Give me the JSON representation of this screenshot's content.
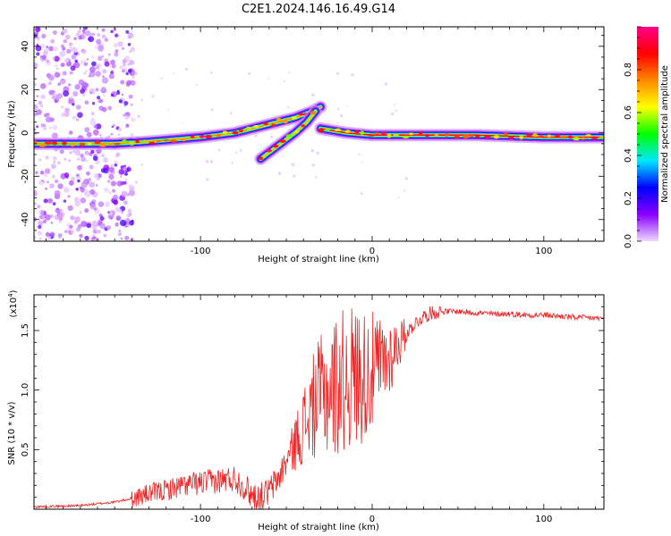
{
  "title": "C2E1.2024.146.16.49.G14",
  "chart_data": [
    {
      "type": "heatmap",
      "xlabel": "Height of straight line (km)",
      "ylabel": "Frequency (Hz)",
      "xlim": [
        -197,
        135
      ],
      "ylim": [
        -50,
        49
      ],
      "xticks": [
        -100,
        0,
        100
      ],
      "yticks": [
        -40,
        -20,
        0,
        20,
        40
      ],
      "ytick_labels": [
        "-40",
        "-20",
        "0",
        "20",
        "40"
      ],
      "colorbar": {
        "label": "Normalized spectral amplitude",
        "range": [
          0,
          1
        ],
        "ticks": [
          0.0,
          0.2,
          0.4,
          0.6,
          0.8
        ],
        "tick_labels": [
          "0.0",
          "0.2",
          "0.4",
          "0.6",
          "0.8"
        ],
        "colors": [
          "#f0d8ff",
          "#8800ff",
          "#0000ff",
          "#00e8ff",
          "#00ff00",
          "#ffff00",
          "#ff8800",
          "#ff0000",
          "#ff0088"
        ]
      },
      "ridges": [
        {
          "x": [
            -197,
            -150,
            -130,
            -100,
            -80,
            -60,
            -45,
            -35,
            -30
          ],
          "y": [
            -5,
            -5,
            -4,
            -2,
            0,
            4,
            7,
            10,
            12
          ],
          "amplitude": 0.75
        },
        {
          "x": [
            -65,
            -55,
            -45,
            -38,
            -33
          ],
          "y": [
            -12,
            -6,
            0,
            5,
            10
          ],
          "amplitude": 0.7
        },
        {
          "x": [
            -30,
            -15,
            0,
            20,
            60,
            100,
            135
          ],
          "y": [
            2,
            0,
            -1,
            -1,
            -1,
            -2,
            -2
          ],
          "amplitude": 0.9
        }
      ]
    },
    {
      "type": "line",
      "xlabel": "Height of straight line (km)",
      "ylabel": "SNR (10 * v/v)",
      "multiplier": "(x10",
      "multiplier_exp": "4",
      "multiplier_close": ")",
      "xlim": [
        -197,
        135
      ],
      "ylim": [
        0,
        1.8
      ],
      "xticks": [
        -100,
        0,
        100
      ],
      "yticks": [
        0.5,
        1.0,
        1.5
      ],
      "ytick_labels": [
        "0.5",
        "1.0",
        "1.5"
      ],
      "color": "#ee2222",
      "series": [
        {
          "x": [
            -197,
            -170,
            -150,
            -140,
            -130,
            -120,
            -110,
            -100,
            -90,
            -85,
            -80,
            -75,
            -70,
            -65,
            -60,
            -55,
            -50,
            -45,
            -40,
            -35,
            -30,
            -25,
            -20,
            -15,
            -10,
            -5,
            0,
            5,
            10,
            15,
            20,
            25,
            30,
            35,
            40,
            50,
            60,
            70,
            80,
            90,
            100,
            110,
            120,
            135
          ],
          "y": [
            0.02,
            0.03,
            0.06,
            0.09,
            0.13,
            0.16,
            0.2,
            0.22,
            0.24,
            0.25,
            0.26,
            0.2,
            0.12,
            0.1,
            0.15,
            0.25,
            0.4,
            0.55,
            0.7,
            0.85,
            0.95,
            1.0,
            1.05,
            1.1,
            1.12,
            1.13,
            1.15,
            1.2,
            1.28,
            1.38,
            1.48,
            1.56,
            1.62,
            1.65,
            1.66,
            1.66,
            1.65,
            1.64,
            1.64,
            1.63,
            1.63,
            1.62,
            1.61,
            1.6
          ]
        }
      ]
    }
  ]
}
